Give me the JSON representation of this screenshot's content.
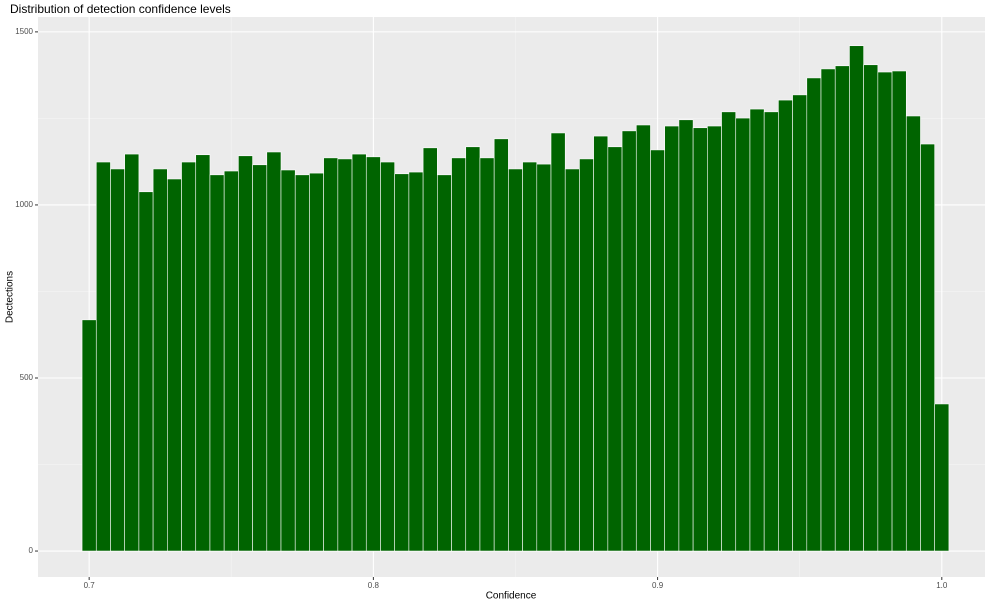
{
  "chart_data": {
    "type": "histogram",
    "title": "Distribution of detection confidence levels",
    "x_label": "Confidence",
    "y_label": "Dectections",
    "bins": [
      0.6975,
      0.7025,
      0.7075,
      0.7125,
      0.7175,
      0.7225,
      0.7275,
      0.7325,
      0.7375,
      0.7425,
      0.7475,
      0.7525,
      0.7575,
      0.7625,
      0.7675,
      0.7725,
      0.7775,
      0.7825,
      0.7875,
      0.7925,
      0.7975,
      0.8025,
      0.8075,
      0.8125,
      0.8175,
      0.8225,
      0.8275,
      0.8325,
      0.8375,
      0.8425,
      0.8475,
      0.8525,
      0.8575,
      0.8625,
      0.8675,
      0.8725,
      0.8775,
      0.8825,
      0.8875,
      0.8925,
      0.8975,
      0.9025,
      0.9075,
      0.9125,
      0.9175,
      0.9225,
      0.9275,
      0.9325,
      0.9375,
      0.9425,
      0.9475,
      0.9525,
      0.9575,
      0.9625,
      0.9675,
      0.9725,
      0.9775,
      0.9825,
      0.9875,
      0.9925,
      0.9975,
      1.0025
    ],
    "values": [
      668,
      1124,
      1104,
      1147,
      1038,
      1104,
      1075,
      1124,
      1145,
      1087,
      1098,
      1142,
      1116,
      1153,
      1101,
      1087,
      1092,
      1136,
      1133,
      1147,
      1139,
      1124,
      1090,
      1095,
      1165,
      1087,
      1136,
      1168,
      1136,
      1191,
      1104,
      1124,
      1118,
      1208,
      1104,
      1133,
      1199,
      1168,
      1214,
      1231,
      1159,
      1228,
      1246,
      1223,
      1228,
      1269,
      1251,
      1277,
      1269,
      1303,
      1318,
      1367,
      1393,
      1402,
      1460,
      1405,
      1384,
      1387,
      1257,
      1176,
      425
    ],
    "color": "#006400",
    "xlim": [
      0.682,
      1.0152
    ],
    "ylim": [
      -75,
      1543
    ],
    "xticks": [
      0.7,
      0.8,
      0.9,
      {
        "value": 1.0,
        "label": "1.0"
      }
    ],
    "yticks": [
      0,
      500,
      1000,
      1500
    ],
    "x_minor_grid": [
      0.75,
      0.85,
      0.95
    ],
    "y_minor_grid": [
      250,
      750,
      1250
    ],
    "grid": true
  }
}
